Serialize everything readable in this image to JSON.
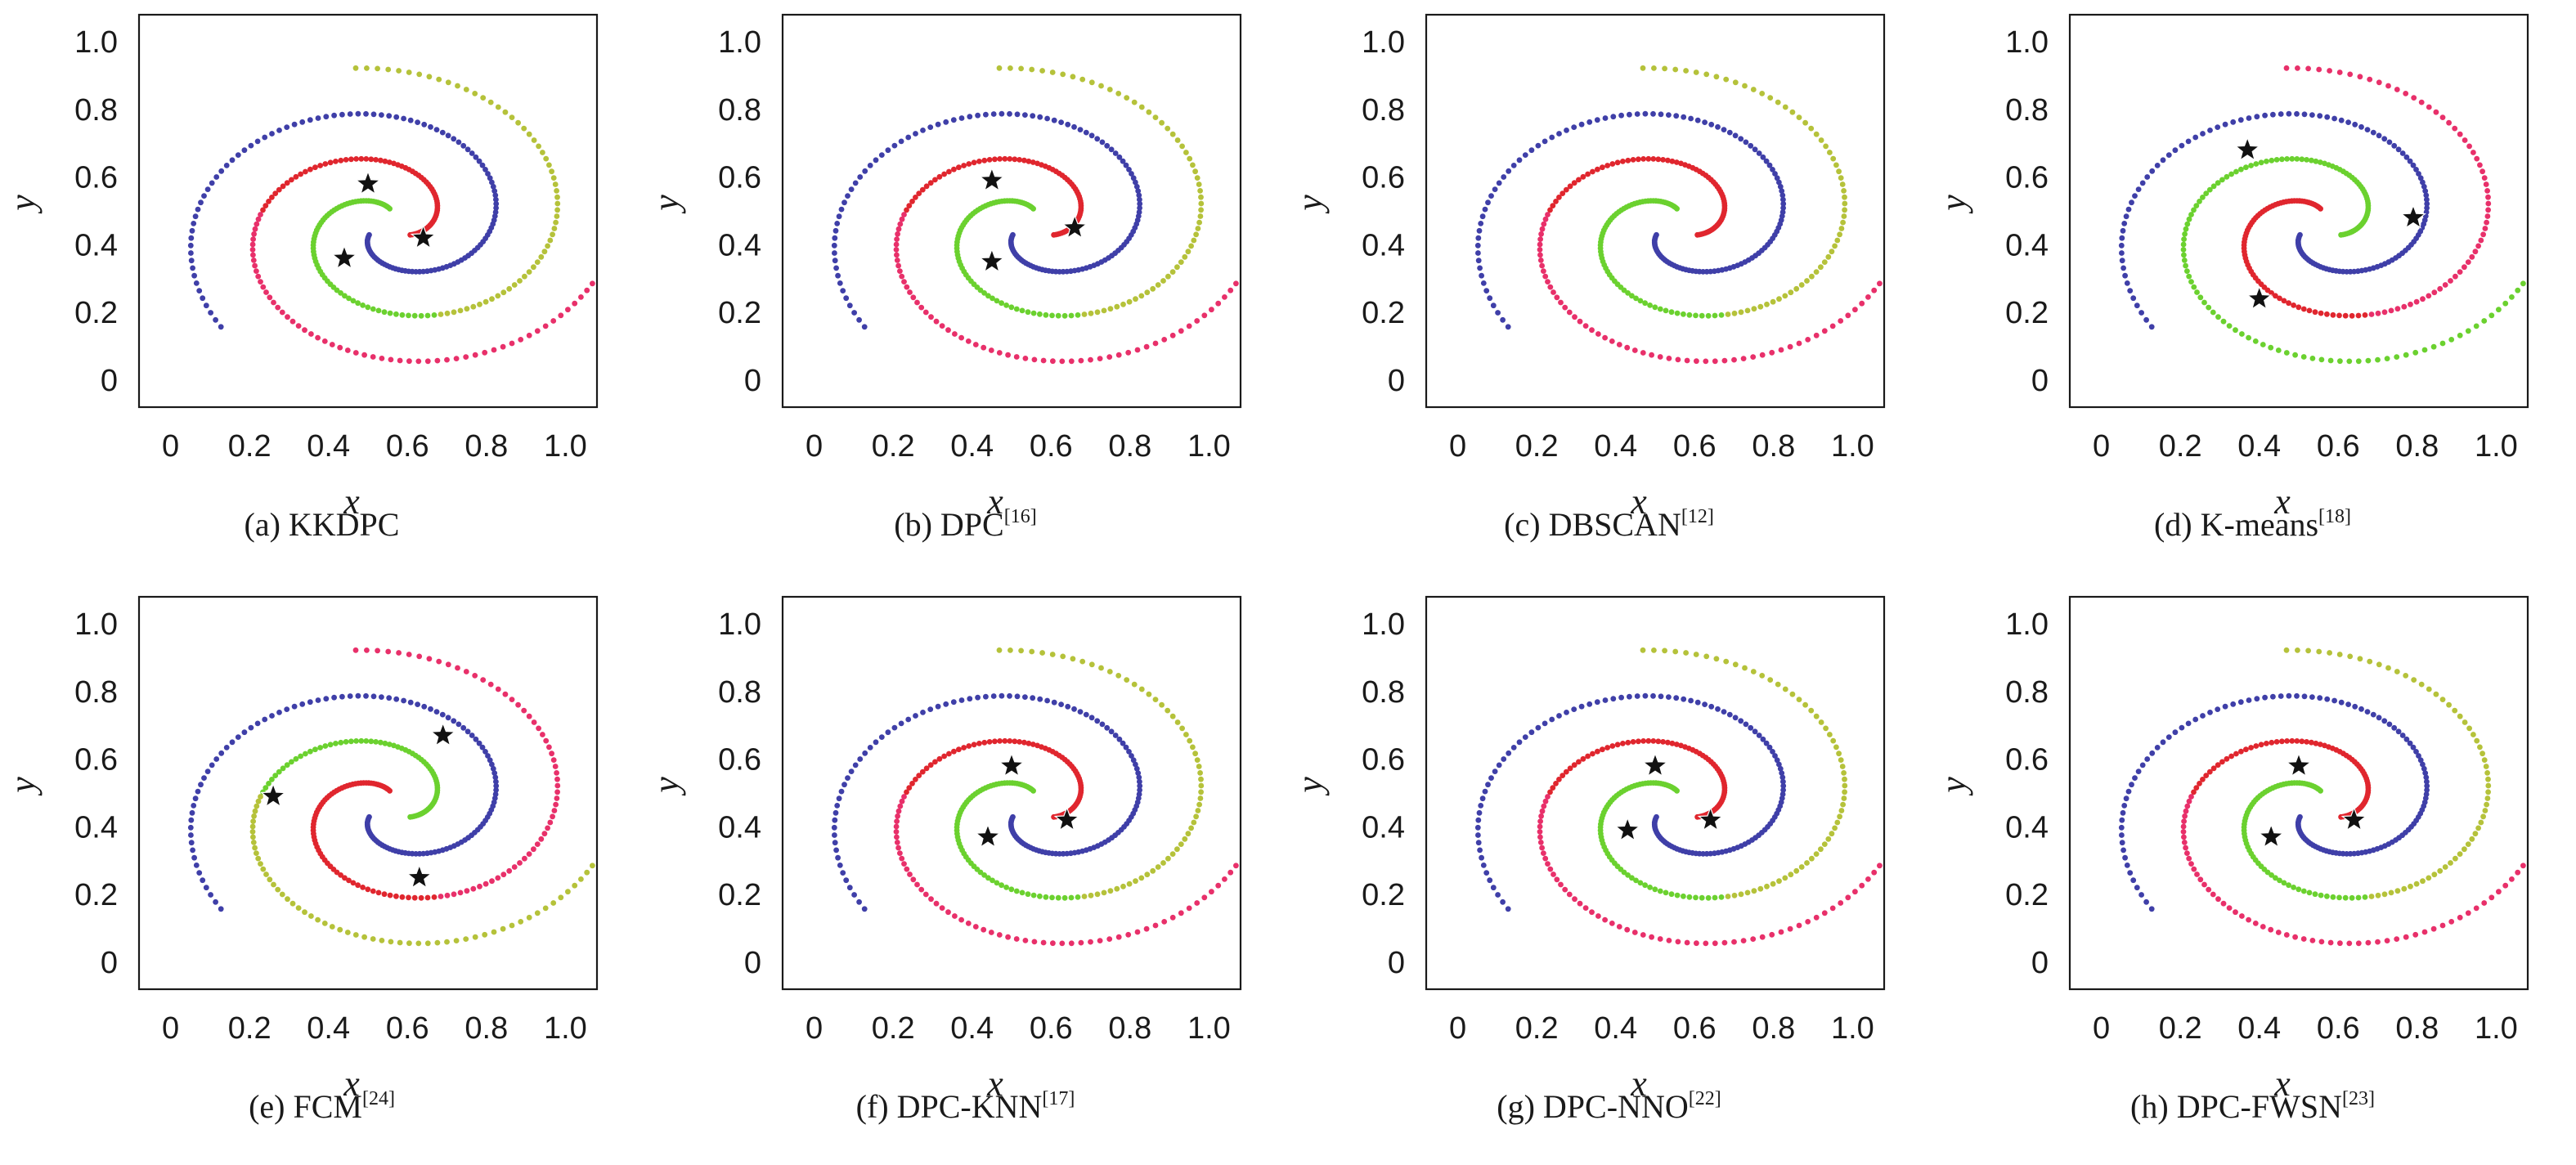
{
  "chart_data": {
    "type": "scatter",
    "description_note": "Eight clustering results on a three-arm spiral dataset; each arm is a series of points.",
    "x_ticks": [
      "0",
      "0.2",
      "0.4",
      "0.6",
      "0.8",
      "1.0"
    ],
    "y_ticks": [
      "0",
      "0.2",
      "0.4",
      "0.6",
      "0.8",
      "1.0"
    ],
    "xlim": [
      -0.08,
      1.08
    ],
    "ylim": [
      -0.08,
      1.08
    ],
    "xlabel": "x",
    "ylabel": "y",
    "colors": {
      "red": "#e0262e",
      "green": "#6bd12f",
      "blue": "#3f3fa8",
      "pink": "#e8306a",
      "yellow": "#b5c23a",
      "steel": "#4a6fb0",
      "star": "#111111"
    },
    "arms": [
      {
        "name": "arm-red",
        "start_angle_deg": -30,
        "n": 130
      },
      {
        "name": "arm-green",
        "start_angle_deg": 90,
        "n": 130
      },
      {
        "name": "arm-blue",
        "start_angle_deg": 210,
        "n": 130
      }
    ],
    "panels": [
      {
        "id": "a",
        "caption_prefix": "(a) KKDPC",
        "ref": "",
        "arm_colors": [
          "red",
          "green",
          "blue"
        ],
        "tail_colors": [
          "pink",
          "yellow",
          "blue"
        ],
        "centers": [
          [
            0.5,
            0.58
          ],
          [
            0.44,
            0.36
          ],
          [
            0.64,
            0.42
          ]
        ]
      },
      {
        "id": "b",
        "caption_prefix": "(b) DPC",
        "ref": "[16]",
        "arm_colors": [
          "red",
          "green",
          "blue"
        ],
        "tail_colors": [
          "pink",
          "yellow",
          "blue"
        ],
        "centers": [
          [
            0.45,
            0.59
          ],
          [
            0.45,
            0.35
          ],
          [
            0.66,
            0.45
          ]
        ]
      },
      {
        "id": "c",
        "caption_prefix": "(c) DBSCAN",
        "ref": "[12]",
        "arm_colors": [
          "red",
          "green",
          "blue"
        ],
        "tail_colors": [
          "pink",
          "yellow",
          "blue"
        ],
        "centers": []
      },
      {
        "id": "d",
        "caption_prefix": "(d) K-means",
        "ref": "[18]",
        "arm_colors": [
          "green",
          "red",
          "blue"
        ],
        "tail_colors": [
          "green",
          "pink",
          "blue"
        ],
        "centers": [
          [
            0.37,
            0.68
          ],
          [
            0.79,
            0.48
          ],
          [
            0.4,
            0.24
          ]
        ]
      },
      {
        "id": "e",
        "caption_prefix": "(e) FCM",
        "ref": "[24]",
        "arm_colors": [
          "green",
          "red",
          "blue"
        ],
        "tail_colors": [
          "yellow",
          "pink",
          "blue"
        ],
        "centers": [
          [
            0.69,
            0.67
          ],
          [
            0.26,
            0.49
          ],
          [
            0.63,
            0.25
          ]
        ]
      },
      {
        "id": "f",
        "caption_prefix": "(f) DPC-KNN",
        "ref": "[17]",
        "arm_colors": [
          "red",
          "green",
          "blue"
        ],
        "tail_colors": [
          "pink",
          "yellow",
          "blue"
        ],
        "centers": [
          [
            0.5,
            0.58
          ],
          [
            0.44,
            0.37
          ],
          [
            0.64,
            0.42
          ]
        ]
      },
      {
        "id": "g",
        "caption_prefix": "(g) DPC-NNO",
        "ref": "[22]",
        "arm_colors": [
          "red",
          "green",
          "blue"
        ],
        "tail_colors": [
          "pink",
          "yellow",
          "blue"
        ],
        "centers": [
          [
            0.5,
            0.58
          ],
          [
            0.43,
            0.39
          ],
          [
            0.64,
            0.42
          ]
        ]
      },
      {
        "id": "h",
        "caption_prefix": "(h) DPC-FWSN",
        "ref": "[23]",
        "arm_colors": [
          "red",
          "green",
          "blue"
        ],
        "tail_colors": [
          "pink",
          "yellow",
          "blue"
        ],
        "centers": [
          [
            0.5,
            0.58
          ],
          [
            0.43,
            0.37
          ],
          [
            0.64,
            0.42
          ]
        ]
      }
    ]
  }
}
